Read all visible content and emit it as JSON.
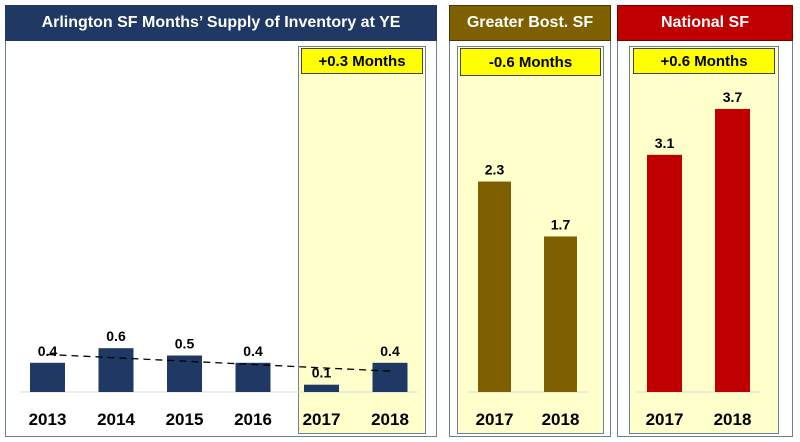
{
  "colors": {
    "arlington": "#1f3864",
    "greater_boston": "#7f6000",
    "national": "#c00000",
    "highlight": "#ffffcc",
    "callout": "#ffff00"
  },
  "chart_data": [
    {
      "type": "bar",
      "title": "Arlington SF Months’ Supply of Inventory at YE",
      "categories": [
        "2013",
        "2014",
        "2015",
        "2016",
        "2017",
        "2018"
      ],
      "values": [
        0.4,
        0.6,
        0.5,
        0.4,
        0.1,
        0.4
      ],
      "value_labels": [
        "0.4",
        "0.6",
        "0.5",
        "0.4",
        "0.1",
        "0.4"
      ],
      "annotation": "+0.3 Months",
      "trendline": "dashed linear",
      "ylim": [
        0,
        4
      ],
      "grid": false
    },
    {
      "type": "bar",
      "title": "Greater Bost. SF",
      "categories": [
        "2017",
        "2018"
      ],
      "values": [
        2.3,
        1.7
      ],
      "value_labels": [
        "2.3",
        "1.7"
      ],
      "annotation": "-0.6 Months",
      "ylim": [
        0,
        4
      ],
      "grid": false
    },
    {
      "type": "bar",
      "title": "National SF",
      "categories": [
        "2017",
        "2018"
      ],
      "values": [
        3.1,
        3.7
      ],
      "value_labels": [
        "3.1",
        "3.7"
      ],
      "annotation": "+0.6 Months",
      "ylim": [
        0,
        4
      ],
      "grid": false
    }
  ]
}
